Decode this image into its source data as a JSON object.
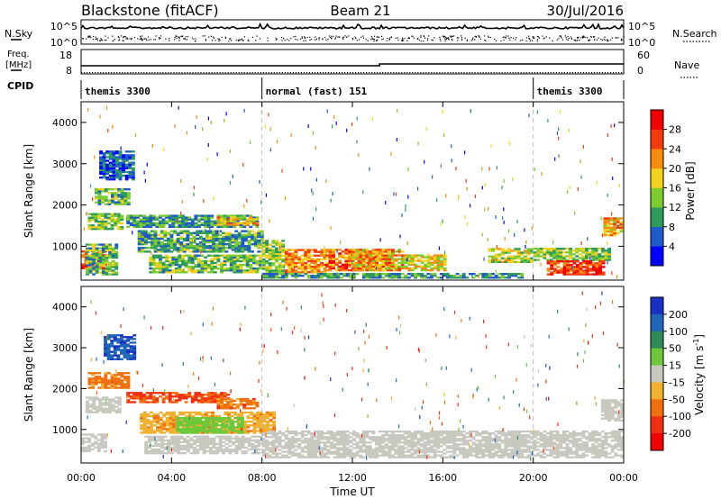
{
  "header": {
    "station": "Blackstone (fitACF)",
    "beam": "Beam 21",
    "date": "30/Jul/2016"
  },
  "noise_panel": {
    "left_label": "N.Sky",
    "right_label": "N.Search",
    "ticks_left": [
      "10^5",
      "10^0"
    ],
    "ticks_right": [
      "10^5",
      "10^0"
    ]
  },
  "freq_panel": {
    "left_label_line1": "Freq.",
    "left_label_line2": "[MHz]",
    "right_label": "Nave",
    "ticks_left": [
      "18",
      "8"
    ],
    "ticks_right": [
      "60",
      "0"
    ]
  },
  "cpid_panel": {
    "label": "CPID",
    "modes": [
      {
        "name": "themis 3300",
        "start_h": 0,
        "end_h": 8
      },
      {
        "name": "normal (fast) 151",
        "start_h": 8,
        "end_h": 20
      },
      {
        "name": "themis 3300",
        "start_h": 20,
        "end_h": 24
      }
    ]
  },
  "axes": {
    "ylabel": "Slant Range [km]",
    "xlabel": "Time UT",
    "y_ticks": [
      "1000",
      "2000",
      "3000",
      "4000"
    ],
    "x_ticks": [
      "00:00",
      "04:00",
      "08:00",
      "12:00",
      "16:00",
      "20:00",
      "00:00"
    ]
  },
  "power_colorbar": {
    "label": "Power [dB]",
    "ticks": [
      "4",
      "8",
      "12",
      "16",
      "20",
      "24",
      "28"
    ],
    "colors": [
      "#0000ff",
      "#1e5bc8",
      "#2e9a5c",
      "#7ccc2f",
      "#f2d11f",
      "#f58c0e",
      "#f23c0c",
      "#f00000"
    ]
  },
  "velocity_colorbar": {
    "label": "Velocity [m s",
    "label_sup": "-1",
    "label_end": "]",
    "ticks": [
      "200",
      "100",
      "50",
      "15",
      "-15",
      "-50",
      "-100",
      "-200"
    ],
    "colors": [
      "#1a2fc4",
      "#1f66b8",
      "#2e8a56",
      "#6cc83a",
      "#c8c8c0",
      "#f0b030",
      "#f07010",
      "#f03010",
      "#f00000"
    ]
  },
  "chart_data": [
    {
      "type": "heatmap",
      "title": "Power",
      "xlim_hours": [
        0,
        24
      ],
      "ylim_km": [
        180,
        4500
      ],
      "zlim_db": [
        0,
        32
      ],
      "echo_regions": [
        {
          "t0": 0.0,
          "t1": 1.2,
          "r0": 450,
          "r1": 900,
          "db": 26
        },
        {
          "t0": 0.2,
          "t1": 1.6,
          "r0": 300,
          "r1": 1050,
          "db": 12
        },
        {
          "t0": 0.3,
          "t1": 1.9,
          "r0": 1400,
          "r1": 1800,
          "db": 14
        },
        {
          "t0": 0.6,
          "t1": 2.2,
          "r0": 2000,
          "r1": 2400,
          "db": 12
        },
        {
          "t0": 0.8,
          "t1": 2.4,
          "r0": 2600,
          "r1": 3300,
          "db": 6
        },
        {
          "t0": 2.0,
          "t1": 7.8,
          "r0": 1450,
          "r1": 1750,
          "db": 10
        },
        {
          "t0": 2.5,
          "t1": 8.0,
          "r0": 850,
          "r1": 1350,
          "db": 11
        },
        {
          "t0": 3.0,
          "t1": 8.0,
          "r0": 350,
          "r1": 800,
          "db": 13
        },
        {
          "t0": 6.0,
          "t1": 7.8,
          "r0": 1500,
          "r1": 1700,
          "db": 19
        },
        {
          "t0": 8.0,
          "t1": 9.0,
          "r0": 300,
          "r1": 1150,
          "db": 14
        },
        {
          "t0": 9.0,
          "t1": 10.8,
          "r0": 350,
          "r1": 900,
          "db": 22
        },
        {
          "t0": 10.8,
          "t1": 13.8,
          "r0": 400,
          "r1": 900,
          "db": 24
        },
        {
          "t0": 12.0,
          "t1": 14.3,
          "r0": 400,
          "r1": 900,
          "db": 20
        },
        {
          "t0": 14.3,
          "t1": 16.2,
          "r0": 400,
          "r1": 800,
          "db": 18
        },
        {
          "t0": 8.0,
          "t1": 19.5,
          "r0": 220,
          "r1": 330,
          "db": 10
        },
        {
          "t0": 18.0,
          "t1": 20.0,
          "r0": 600,
          "r1": 950,
          "db": 16
        },
        {
          "t0": 20.0,
          "t1": 23.4,
          "r0": 650,
          "r1": 950,
          "db": 14
        },
        {
          "t0": 20.6,
          "t1": 23.2,
          "r0": 300,
          "r1": 650,
          "db": 27
        },
        {
          "t0": 23.1,
          "t1": 24.0,
          "r0": 1250,
          "r1": 1700,
          "db": 20
        }
      ]
    },
    {
      "type": "heatmap",
      "title": "Velocity",
      "xlim_hours": [
        0,
        24
      ],
      "ylim_km": [
        180,
        4500
      ],
      "zlim_ms": [
        -200,
        200
      ],
      "echo_regions": [
        {
          "t0": 0.0,
          "t1": 1.2,
          "r0": 450,
          "r1": 900,
          "v": 0
        },
        {
          "t0": 0.2,
          "t1": 1.8,
          "r0": 1400,
          "r1": 1800,
          "v": 0
        },
        {
          "t0": 0.3,
          "t1": 2.2,
          "r0": 2000,
          "r1": 2400,
          "v": -60
        },
        {
          "t0": 1.0,
          "t1": 2.4,
          "r0": 2700,
          "r1": 3300,
          "v": 180
        },
        {
          "t0": 2.0,
          "t1": 6.5,
          "r0": 1650,
          "r1": 1900,
          "v": -110
        },
        {
          "t0": 6.0,
          "t1": 7.8,
          "r0": 1500,
          "r1": 1750,
          "v": -70
        },
        {
          "t0": 2.6,
          "t1": 8.6,
          "r0": 900,
          "r1": 1400,
          "v": -40
        },
        {
          "t0": 4.2,
          "t1": 7.2,
          "r0": 900,
          "r1": 1300,
          "v": 30
        },
        {
          "t0": 2.8,
          "t1": 8.0,
          "r0": 400,
          "r1": 850,
          "v": 0
        },
        {
          "t0": 8.0,
          "t1": 19.5,
          "r0": 300,
          "r1": 950,
          "v": 0
        },
        {
          "t0": 19.0,
          "t1": 24.0,
          "r0": 300,
          "r1": 950,
          "v": 0
        },
        {
          "t0": 23.0,
          "t1": 24.0,
          "r0": 1200,
          "r1": 1700,
          "v": 0
        }
      ]
    }
  ]
}
